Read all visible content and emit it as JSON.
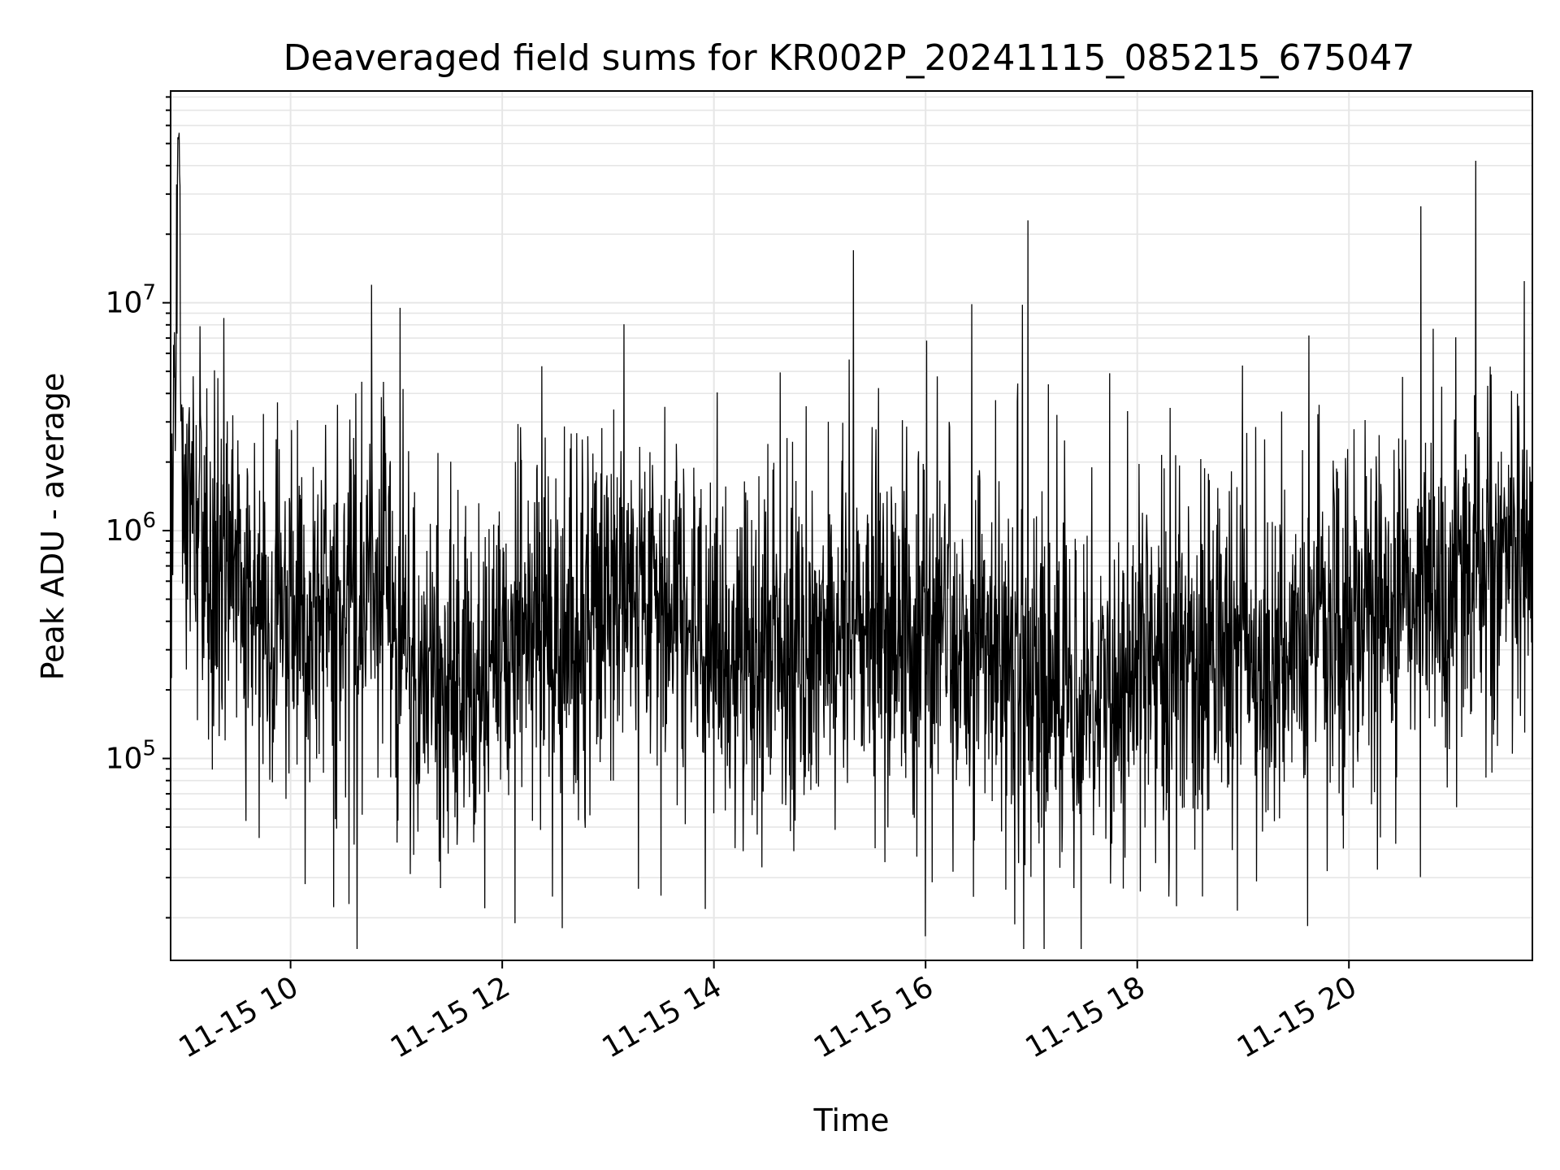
{
  "chart_data": {
    "type": "line",
    "title": "Deaveraged field sums for KR002P_20241115_085215_675047",
    "xlabel": "Time",
    "ylabel": "Peak ADU - average",
    "y_scale": "log",
    "ylim": [
      13000,
      85000000
    ],
    "xlim": [
      "2024-11-15 08:52",
      "2024-11-15 21:44"
    ],
    "x_ticks": [
      {
        "value": "2024-11-15 10:00",
        "label": "11-15 10"
      },
      {
        "value": "2024-11-15 12:00",
        "label": "11-15 12"
      },
      {
        "value": "2024-11-15 14:00",
        "label": "11-15 14"
      },
      {
        "value": "2024-11-15 16:00",
        "label": "11-15 16"
      },
      {
        "value": "2024-11-15 18:00",
        "label": "11-15 18"
      },
      {
        "value": "2024-11-15 20:00",
        "label": "11-15 20"
      }
    ],
    "y_ticks": [
      {
        "value": 100000,
        "base": "10",
        "exp": "5"
      },
      {
        "value": 1000000,
        "base": "10",
        "exp": "6"
      },
      {
        "value": 10000000,
        "base": "10",
        "exp": "7"
      }
    ],
    "grid": true,
    "line_color": "#000000",
    "grid_color": "#e6e6e6",
    "series": [
      {
        "x": [
          "2024-11-15 08:52",
          "2024-11-15 08:54",
          "2024-11-15 08:55",
          "2024-11-15 08:56",
          "2024-11-15 08:57",
          "2024-11-15 08:58",
          "2024-11-15 08:59",
          "2024-11-15 09:00",
          "2024-11-15 09:02",
          "2024-11-15 09:06",
          "2024-11-15 09:10",
          "2024-11-15 09:15",
          "2024-11-15 09:20",
          "2024-11-15 09:30",
          "2024-11-15 09:40",
          "2024-11-15 09:50",
          "2024-11-15 10:05",
          "2024-11-15 10:20",
          "2024-11-15 10:35",
          "2024-11-15 10:46",
          "2024-11-15 10:50",
          "2024-11-15 10:56",
          "2024-11-15 11:00",
          "2024-11-15 11:10",
          "2024-11-15 11:30",
          "2024-11-15 11:50",
          "2024-11-15 12:10",
          "2024-11-15 12:30",
          "2024-11-15 12:35",
          "2024-11-15 12:50",
          "2024-11-15 13:10",
          "2024-11-15 13:30",
          "2024-11-15 14:00",
          "2024-11-15 14:30",
          "2024-11-15 15:00",
          "2024-11-15 15:20",
          "2024-11-15 15:40",
          "2024-11-15 15:56",
          "2024-11-15 16:10",
          "2024-11-15 16:30",
          "2024-11-15 16:55",
          "2024-11-15 17:10",
          "2024-11-15 17:30",
          "2024-11-15 18:00",
          "2024-11-15 18:30",
          "2024-11-15 19:00",
          "2024-11-15 19:30",
          "2024-11-15 20:00",
          "2024-11-15 20:30",
          "2024-11-15 21:00",
          "2024-11-15 21:12",
          "2024-11-15 21:20",
          "2024-11-15 21:30",
          "2024-11-15 21:44"
        ],
        "y": [
          1000000,
          2500000,
          5500000,
          58000000,
          52000000,
          1600000,
          900000,
          1100000,
          1200000,
          1000000,
          800000,
          650000,
          600000,
          550000,
          500000,
          450000,
          420000,
          450000,
          500000,
          650000,
          700000,
          600000,
          350000,
          250000,
          220000,
          300000,
          380000,
          330000,
          300000,
          450000,
          480000,
          420000,
          300000,
          300000,
          350000,
          380000,
          350000,
          280000,
          300000,
          320000,
          250000,
          200000,
          220000,
          250000,
          260000,
          280000,
          320000,
          420000,
          480000,
          600000,
          620000,
          700000,
          800000,
          750000
        ]
      }
    ],
    "peaks": [
      {
        "x": "2024-11-15 10:46",
        "y": 12000000
      },
      {
        "x": "2024-11-15 11:02",
        "y": 9500000
      },
      {
        "x": "2024-11-15 15:19",
        "y": 17000000
      },
      {
        "x": "2024-11-15 16:55",
        "y": 9800000
      },
      {
        "x": "2024-11-15 16:58",
        "y": 23000000
      },
      {
        "x": "2024-11-15 21:12",
        "y": 42000000
      }
    ],
    "troughs": [
      {
        "x": "2024-11-15 12:34",
        "y": 18000.0
      },
      {
        "x": "2024-11-15 11:50",
        "y": 22000
      },
      {
        "x": "2024-11-15 13:30",
        "y": 25000
      },
      {
        "x": "2024-11-15 17:24",
        "y": 27000
      },
      {
        "x": "2024-11-15 11:25",
        "y": 27000
      }
    ]
  }
}
